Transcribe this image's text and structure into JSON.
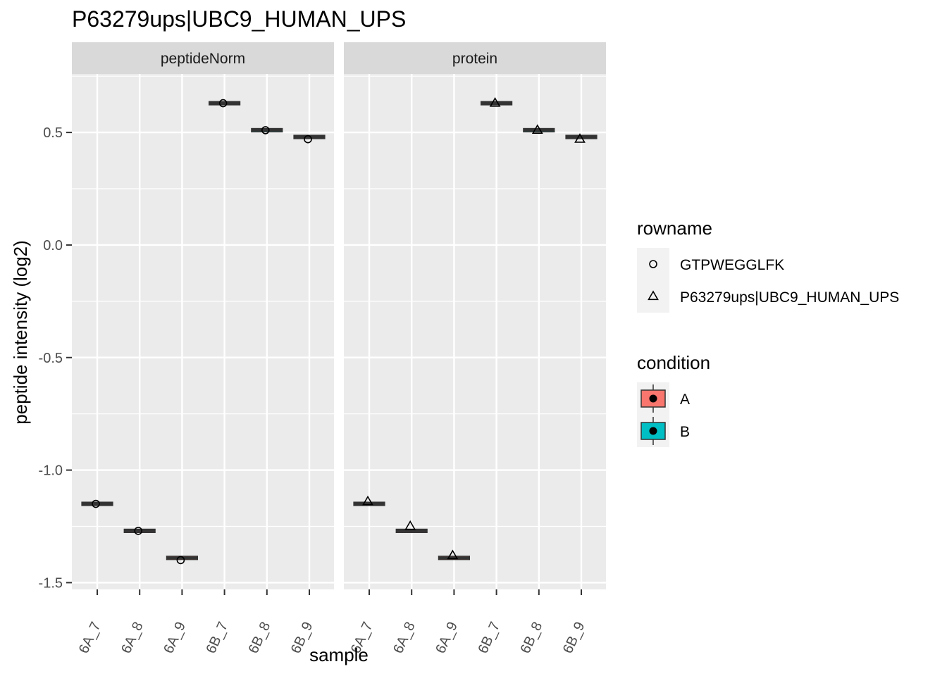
{
  "chart_data": {
    "type": "boxplot",
    "title": "P63279ups|UBC9_HUMAN_UPS",
    "xlabel": "sample",
    "ylabel": "peptide intensity (log2)",
    "ylim": [
      -1.53,
      0.76
    ],
    "yticks": [
      -1.5,
      -1.0,
      -0.5,
      0.0,
      0.5
    ],
    "ytick_labels": [
      "-1.5",
      "-1.0",
      "-0.5",
      "0.0",
      "0.5"
    ],
    "categories": [
      "6A_7",
      "6A_8",
      "6A_9",
      "6B_7",
      "6B_8",
      "6B_9"
    ],
    "category_condition": [
      "A",
      "A",
      "A",
      "B",
      "B",
      "B"
    ],
    "grid": true,
    "legend_position": "right",
    "panels": [
      {
        "name": "peptideNorm",
        "box_medians": [
          -1.15,
          -1.27,
          -1.39,
          0.63,
          0.51,
          0.48
        ],
        "series": [
          {
            "name": "GTPWEGGLFK",
            "shape": "circle",
            "values": [
              -1.15,
              -1.27,
              -1.4,
              0.63,
              0.51,
              0.47
            ]
          }
        ]
      },
      {
        "name": "protein",
        "box_medians": [
          -1.15,
          -1.27,
          -1.39,
          0.63,
          0.51,
          0.48
        ],
        "series": [
          {
            "name": "P63279ups|UBC9_HUMAN_UPS",
            "shape": "triangle",
            "values": [
              -1.14,
              -1.25,
              -1.38,
              0.63,
              0.51,
              0.47
            ]
          }
        ]
      }
    ],
    "legends": [
      {
        "title": "rowname",
        "items": [
          {
            "label": "GTPWEGGLFK",
            "shape": "circle"
          },
          {
            "label": "P63279ups|UBC9_HUMAN_UPS",
            "shape": "triangle"
          }
        ]
      },
      {
        "title": "condition",
        "items": [
          {
            "label": "A",
            "color": "#F8766D"
          },
          {
            "label": "B",
            "color": "#00BFC4"
          }
        ]
      }
    ]
  }
}
